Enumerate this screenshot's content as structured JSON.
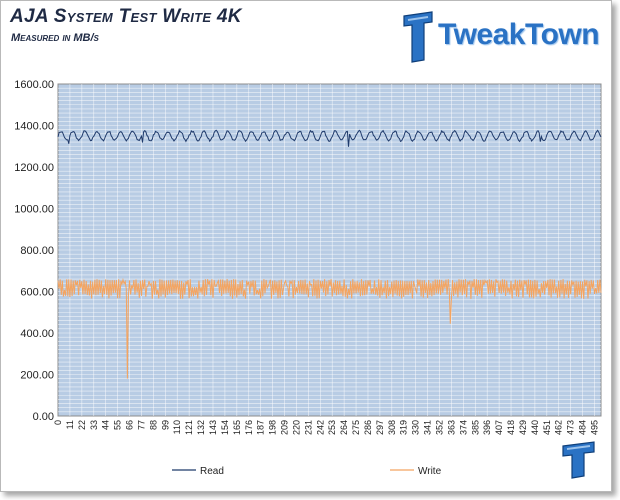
{
  "header": {
    "title": "AJA System Test Write 4K",
    "subtitle": "Measured in MB/s",
    "brand": "TweakTown"
  },
  "colors": {
    "plot_background": "#b8cce4",
    "read": "#1f3a6b",
    "write": "#f4a460",
    "brand": "#2a72c4"
  },
  "icons": [
    "tweaktown-logo-icon",
    "tweaktown-corner-logo-icon"
  ],
  "chart_data": {
    "type": "line",
    "title": "AJA System Test Write 4K",
    "subtitle": "Measured in MB/s",
    "xlabel": "",
    "ylabel": "",
    "ylim": [
      0,
      1600
    ],
    "yticks": [
      "0.00",
      "200.00",
      "400.00",
      "600.00",
      "800.00",
      "1000.00",
      "1200.00",
      "1400.00",
      "1600.00"
    ],
    "xlim": [
      0,
      501
    ],
    "xticks": [
      0,
      11,
      22,
      33,
      44,
      55,
      66,
      77,
      88,
      99,
      110,
      121,
      132,
      143,
      154,
      165,
      176,
      187,
      198,
      209,
      220,
      231,
      242,
      253,
      264,
      275,
      286,
      297,
      308,
      319,
      330,
      341,
      352,
      363,
      374,
      385,
      396,
      407,
      418,
      429,
      440,
      451,
      462,
      473,
      484,
      495
    ],
    "grid": true,
    "legend": "bottom",
    "series": [
      {
        "name": "Read",
        "color": "#1f3a6b",
        "baseline": 1350,
        "amplitude": 22,
        "period": 11,
        "dips": [
          {
            "x": 10,
            "y": 1312
          },
          {
            "x": 78,
            "y": 1318
          },
          {
            "x": 268,
            "y": 1298
          },
          {
            "x": 445,
            "y": 1322
          }
        ]
      },
      {
        "name": "Write",
        "color": "#f4a460",
        "low": 565,
        "high": 660,
        "dips": [
          {
            "x": 64,
            "y": 180
          },
          {
            "x": 362,
            "y": 445
          }
        ]
      }
    ]
  }
}
